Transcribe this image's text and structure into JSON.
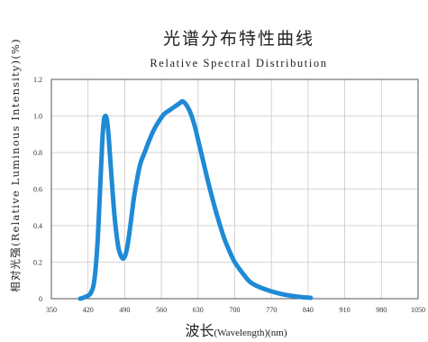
{
  "chart_data": {
    "type": "line",
    "title": "光谱分布特性曲线",
    "subtitle": "Relative Spectral Distribution",
    "ylabel": "相对光强(Relative Luminous Intensity)(%)",
    "xlabel": "波长(Wavelength)(nm)",
    "xlabel_parts": [
      "波长",
      "(Wavelength)",
      "(nm)"
    ],
    "xlim": [
      350,
      1050
    ],
    "ylim": [
      0,
      1.2
    ],
    "x_ticks": [
      "350",
      "420",
      "490",
      "560",
      "630",
      "700",
      "770",
      "840",
      "910",
      "980",
      "1050"
    ],
    "y_ticks": [
      "0",
      "0.2",
      "0.4",
      "0.6",
      "0.8",
      "1.0",
      "1.2"
    ],
    "grid": true,
    "series_color": "#1f8ad6",
    "series": [
      {
        "x": [
          405,
          415,
          425,
          432,
          438,
          443,
          447,
          450,
          453,
          456,
          459,
          462,
          466,
          470,
          474,
          478,
          482,
          486,
          490,
          494,
          498,
          503,
          508,
          514,
          520,
          528,
          536,
          545,
          555,
          565,
          575,
          585,
          595,
          600,
          605,
          610,
          615,
          620,
          625,
          630,
          635,
          640,
          650,
          660,
          670,
          680,
          690,
          700,
          715,
          730,
          750,
          770,
          790,
          810,
          830,
          845
        ],
        "y": [
          0.0,
          0.01,
          0.03,
          0.1,
          0.3,
          0.6,
          0.85,
          0.97,
          1.0,
          0.98,
          0.9,
          0.78,
          0.62,
          0.47,
          0.36,
          0.28,
          0.24,
          0.22,
          0.23,
          0.27,
          0.34,
          0.45,
          0.56,
          0.66,
          0.74,
          0.8,
          0.86,
          0.92,
          0.97,
          1.01,
          1.03,
          1.05,
          1.07,
          1.08,
          1.07,
          1.05,
          1.02,
          0.98,
          0.93,
          0.87,
          0.81,
          0.75,
          0.63,
          0.52,
          0.42,
          0.33,
          0.26,
          0.2,
          0.14,
          0.09,
          0.06,
          0.04,
          0.025,
          0.015,
          0.008,
          0.005
        ]
      }
    ]
  }
}
